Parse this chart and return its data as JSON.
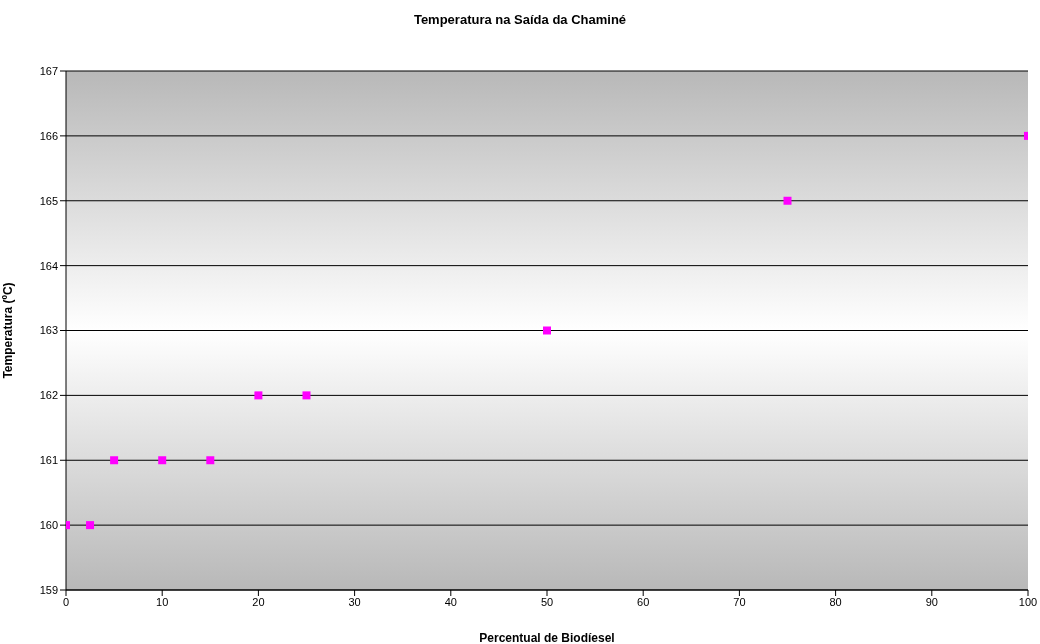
{
  "chart_data": {
    "type": "scatter",
    "title": "Temperatura na Saída da Chaminé",
    "xlabel": "Percentual de Biodíesel",
    "ylabel": "Temperatura (ºC)",
    "x": [
      0,
      2.5,
      5,
      10,
      15,
      20,
      25,
      50,
      75,
      100
    ],
    "series": [
      {
        "color": "#ff00ff",
        "values": [
          160,
          160,
          161,
          161,
          161,
          162,
          162,
          163,
          165,
          166
        ]
      }
    ],
    "xlim": [
      0,
      100
    ],
    "xticks": [
      0,
      10,
      20,
      30,
      40,
      50,
      60,
      70,
      80,
      90,
      100
    ],
    "ylim": [
      159,
      167
    ],
    "yticks": [
      159,
      160,
      161,
      162,
      163,
      164,
      165,
      166,
      167
    ],
    "grid": "y",
    "marker": "square"
  }
}
